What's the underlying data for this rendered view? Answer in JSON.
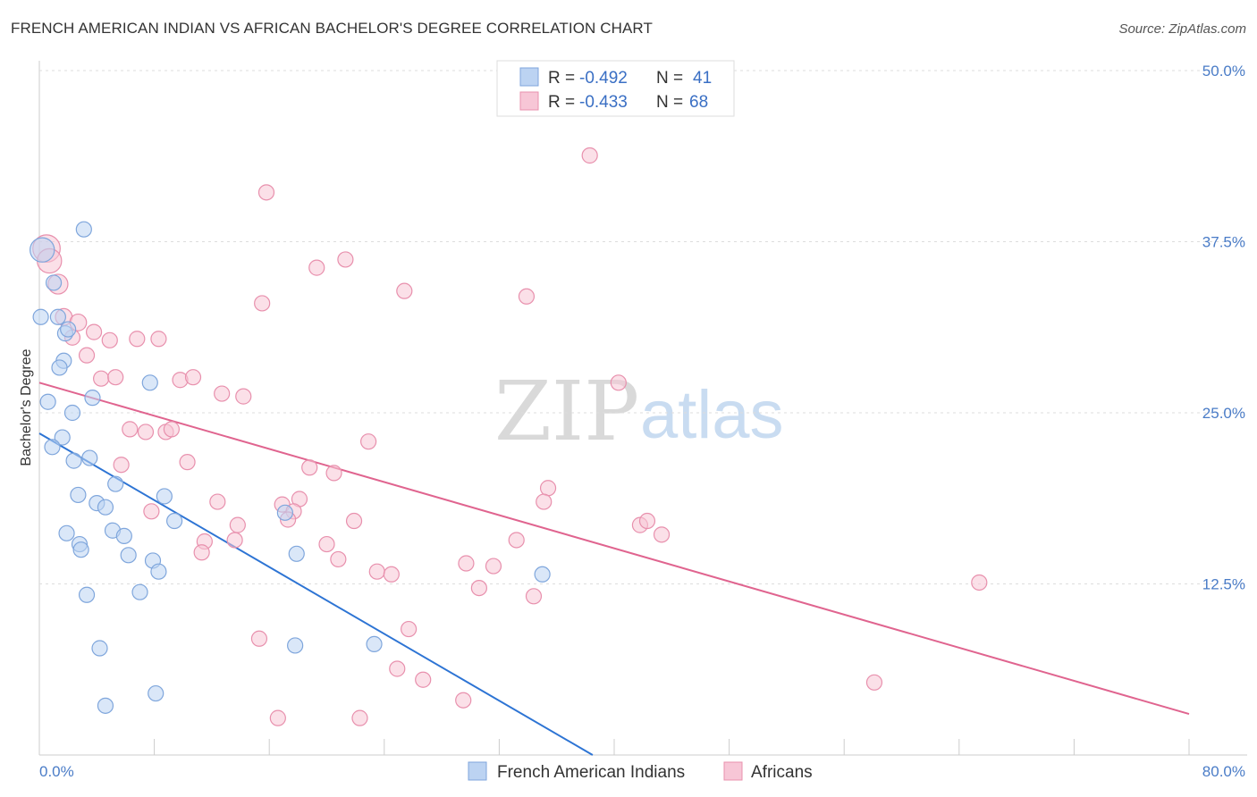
{
  "header": {
    "title": "FRENCH AMERICAN INDIAN VS AFRICAN BACHELOR'S DEGREE CORRELATION CHART",
    "source": "Source: ZipAtlas.com"
  },
  "watermark": {
    "part1": "ZIP",
    "part2": "atlas"
  },
  "colors": {
    "blue_fill": "#bcd3f2",
    "blue_stroke": "#7fa6dc",
    "blue_line": "#2d74d4",
    "pink_fill": "#f7c6d6",
    "pink_stroke": "#e890ad",
    "pink_line": "#e0648f",
    "grid": "#dddddd",
    "tick_text": "#4a7cc7"
  },
  "legend": {
    "rows": [
      {
        "r_label": "R = ",
        "r_value": "-0.492",
        "n_label": "N = ",
        "n_value": "41"
      },
      {
        "r_label": "R = ",
        "r_value": "-0.433",
        "n_label": "N = ",
        "n_value": "68"
      }
    ]
  },
  "bottom_legend": {
    "series1": "French American Indians",
    "series2": "Africans"
  },
  "chart_data": {
    "type": "scatter",
    "ylabel": "Bachelor's Degree",
    "xlabel": "",
    "xlim": [
      0,
      80
    ],
    "ylim": [
      0,
      50
    ],
    "x_tick_labels": [
      "0.0%",
      "80.0%"
    ],
    "y_ticks": [
      12.5,
      25.0,
      37.5,
      50.0
    ],
    "y_tick_labels": [
      "12.5%",
      "25.0%",
      "37.5%",
      "50.0%"
    ],
    "grid": "horizontal dashed",
    "series": [
      {
        "name": "French American Indians",
        "r": -0.492,
        "n": 41,
        "trend": {
          "x": [
            0,
            38.5
          ],
          "y": [
            23.5,
            0
          ]
        },
        "points": [
          [
            0.2,
            36.9,
            1.6
          ],
          [
            0.1,
            32.0,
            1
          ],
          [
            1.0,
            34.5,
            1
          ],
          [
            1.3,
            32.0,
            1
          ],
          [
            3.1,
            38.4,
            1
          ],
          [
            1.7,
            28.8,
            1
          ],
          [
            1.4,
            28.3,
            1
          ],
          [
            1.8,
            30.8,
            1
          ],
          [
            2.0,
            31.1,
            1
          ],
          [
            0.6,
            25.8,
            1
          ],
          [
            2.3,
            25.0,
            1
          ],
          [
            3.7,
            26.1,
            1
          ],
          [
            7.7,
            27.2,
            1
          ],
          [
            1.6,
            23.2,
            1
          ],
          [
            0.9,
            22.5,
            1
          ],
          [
            2.4,
            21.5,
            1
          ],
          [
            3.5,
            21.7,
            1
          ],
          [
            2.7,
            19.0,
            1
          ],
          [
            5.3,
            19.8,
            1
          ],
          [
            4.0,
            18.4,
            1
          ],
          [
            4.6,
            18.1,
            1
          ],
          [
            8.7,
            18.9,
            1
          ],
          [
            9.4,
            17.1,
            1
          ],
          [
            1.9,
            16.2,
            1
          ],
          [
            5.1,
            16.4,
            1
          ],
          [
            5.9,
            16.0,
            1
          ],
          [
            2.8,
            15.4,
            1
          ],
          [
            2.9,
            15.0,
            1
          ],
          [
            6.2,
            14.6,
            1
          ],
          [
            7.9,
            14.2,
            1
          ],
          [
            8.3,
            13.4,
            1
          ],
          [
            17.1,
            17.7,
            1
          ],
          [
            17.9,
            14.7,
            1
          ],
          [
            35.0,
            13.2,
            1
          ],
          [
            3.3,
            11.7,
            1
          ],
          [
            7.0,
            11.9,
            1
          ],
          [
            4.2,
            7.8,
            1
          ],
          [
            17.8,
            8.0,
            1
          ],
          [
            23.3,
            8.1,
            1
          ],
          [
            8.1,
            4.5,
            1
          ],
          [
            4.6,
            3.6,
            1
          ]
        ]
      },
      {
        "name": "Africans",
        "r": -0.433,
        "n": 68,
        "trend": {
          "x": [
            0,
            80
          ],
          "y": [
            27.2,
            3.0
          ]
        },
        "points": [
          [
            0.5,
            37.0,
            1.8
          ],
          [
            0.7,
            36.1,
            1.6
          ],
          [
            1.3,
            34.4,
            1.3
          ],
          [
            1.7,
            32.0,
            1.1
          ],
          [
            2.7,
            31.6,
            1.1
          ],
          [
            3.8,
            30.9,
            1
          ],
          [
            2.3,
            30.5,
            1
          ],
          [
            4.9,
            30.3,
            1
          ],
          [
            6.8,
            30.4,
            1
          ],
          [
            8.3,
            30.4,
            1
          ],
          [
            3.3,
            29.2,
            1
          ],
          [
            4.3,
            27.5,
            1
          ],
          [
            5.3,
            27.6,
            1
          ],
          [
            9.8,
            27.4,
            1
          ],
          [
            10.7,
            27.6,
            1
          ],
          [
            12.7,
            26.4,
            1
          ],
          [
            14.2,
            26.2,
            1
          ],
          [
            15.5,
            33.0,
            1
          ],
          [
            15.8,
            41.1,
            1
          ],
          [
            19.3,
            35.6,
            1
          ],
          [
            21.3,
            36.2,
            1
          ],
          [
            25.4,
            33.9,
            1
          ],
          [
            33.9,
            33.5,
            1
          ],
          [
            38.3,
            43.8,
            1
          ],
          [
            40.3,
            27.2,
            1
          ],
          [
            6.3,
            23.8,
            1
          ],
          [
            7.4,
            23.6,
            1
          ],
          [
            8.8,
            23.6,
            1
          ],
          [
            9.2,
            23.8,
            1
          ],
          [
            5.7,
            21.2,
            1
          ],
          [
            10.3,
            21.4,
            1
          ],
          [
            22.9,
            22.9,
            1
          ],
          [
            18.8,
            21.0,
            1
          ],
          [
            20.5,
            20.6,
            1
          ],
          [
            35.4,
            19.5,
            1
          ],
          [
            35.1,
            18.5,
            1
          ],
          [
            7.8,
            17.8,
            1
          ],
          [
            12.4,
            18.5,
            1
          ],
          [
            16.9,
            18.3,
            1
          ],
          [
            18.1,
            18.7,
            1
          ],
          [
            17.7,
            17.8,
            1
          ],
          [
            17.3,
            17.2,
            1
          ],
          [
            13.8,
            16.8,
            1
          ],
          [
            21.9,
            17.1,
            1
          ],
          [
            41.8,
            16.8,
            1
          ],
          [
            42.3,
            17.1,
            1
          ],
          [
            43.3,
            16.1,
            1
          ],
          [
            11.5,
            15.6,
            1
          ],
          [
            13.6,
            15.7,
            1
          ],
          [
            11.3,
            14.8,
            1
          ],
          [
            20.0,
            15.4,
            1
          ],
          [
            20.8,
            14.3,
            1
          ],
          [
            33.2,
            15.7,
            1
          ],
          [
            29.7,
            14.0,
            1
          ],
          [
            31.6,
            13.8,
            1
          ],
          [
            23.5,
            13.4,
            1
          ],
          [
            24.5,
            13.2,
            1
          ],
          [
            30.6,
            12.2,
            1
          ],
          [
            34.4,
            11.6,
            1
          ],
          [
            65.4,
            12.6,
            1
          ],
          [
            15.3,
            8.5,
            1
          ],
          [
            25.7,
            9.2,
            1
          ],
          [
            24.9,
            6.3,
            1
          ],
          [
            26.7,
            5.5,
            1
          ],
          [
            16.6,
            2.7,
            1
          ],
          [
            22.3,
            2.7,
            1
          ],
          [
            29.5,
            4.0,
            1
          ],
          [
            58.1,
            5.3,
            1
          ]
        ]
      }
    ]
  }
}
